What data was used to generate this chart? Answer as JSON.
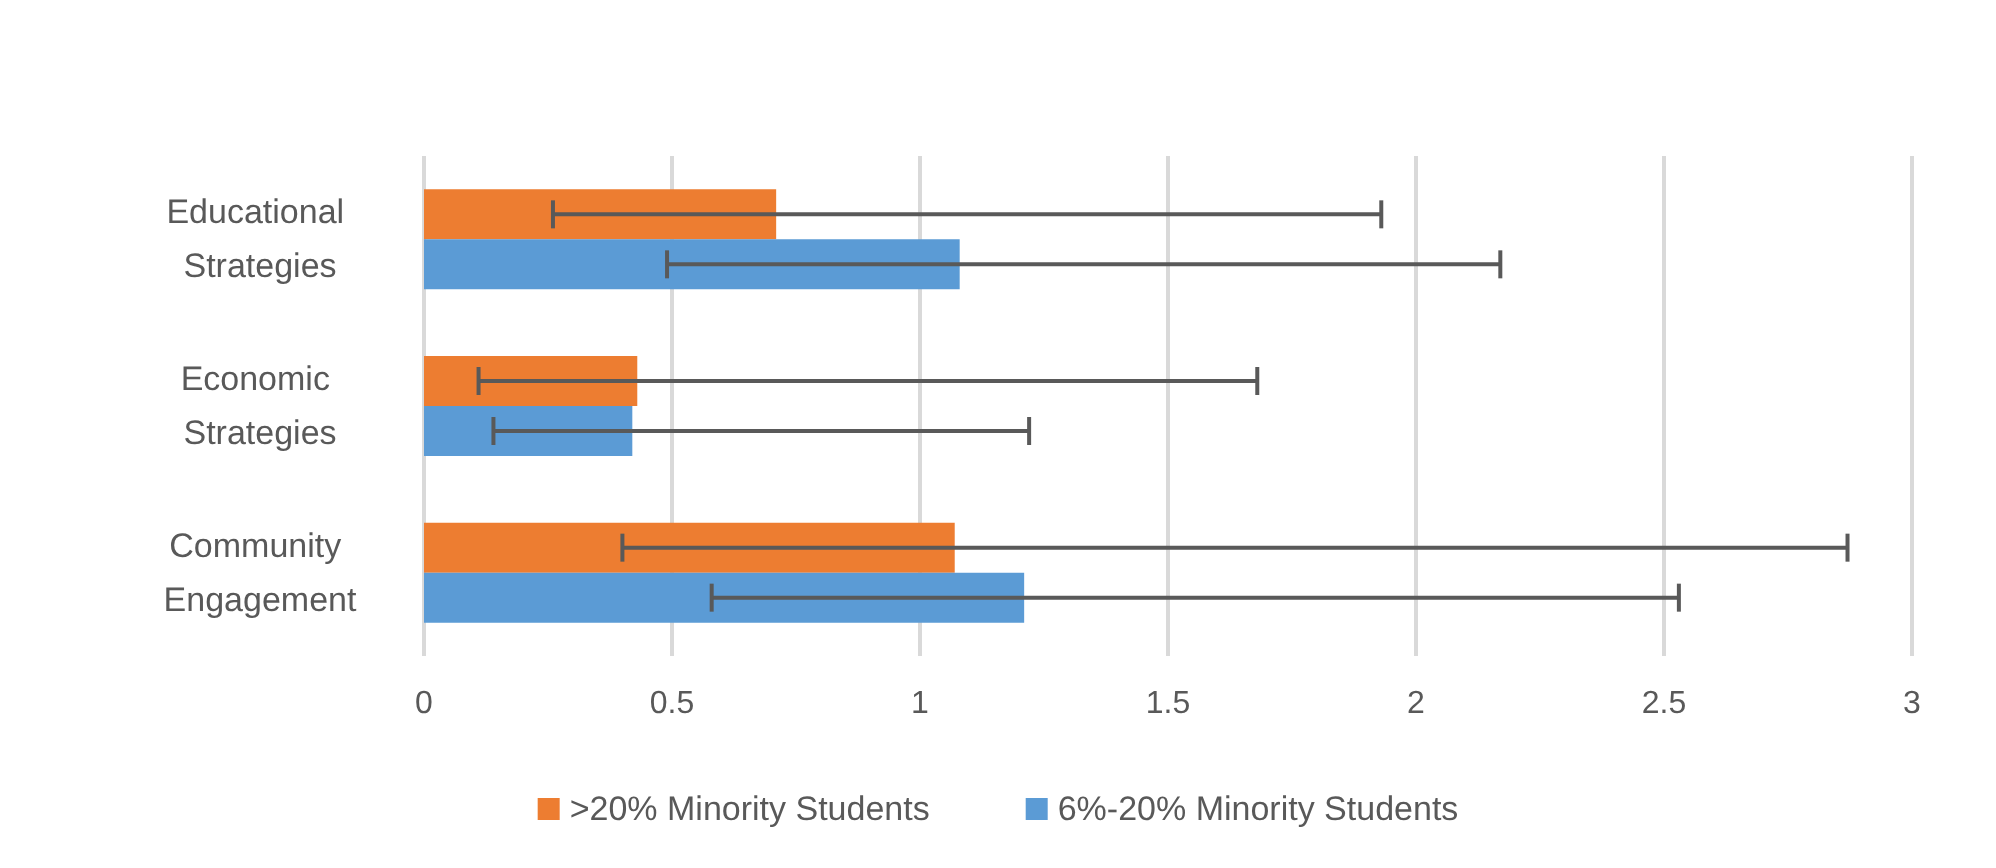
{
  "chart_data": {
    "type": "bar",
    "orientation": "horizontal",
    "categories": [
      "Educational Strategies",
      "Economic Strategies",
      "Community Engagement"
    ],
    "series": [
      {
        "name": ">20% Minority Students",
        "color": "#ed7d31",
        "values": [
          0.71,
          0.43,
          1.07
        ],
        "errors": [
          [
            0.26,
            1.93
          ],
          [
            0.11,
            1.68
          ],
          [
            0.4,
            2.87
          ]
        ]
      },
      {
        "name": "6%-20% Minority Students",
        "color": "#5b9bd5",
        "values": [
          1.08,
          0.42,
          1.21
        ],
        "errors": [
          [
            0.49,
            2.17
          ],
          [
            0.14,
            1.22
          ],
          [
            0.58,
            2.53
          ]
        ]
      }
    ],
    "xlim": [
      0,
      3
    ],
    "xticks": [
      0,
      0.5,
      1,
      1.5,
      2,
      2.5,
      3
    ],
    "grid": "x",
    "legend": "bottom"
  }
}
